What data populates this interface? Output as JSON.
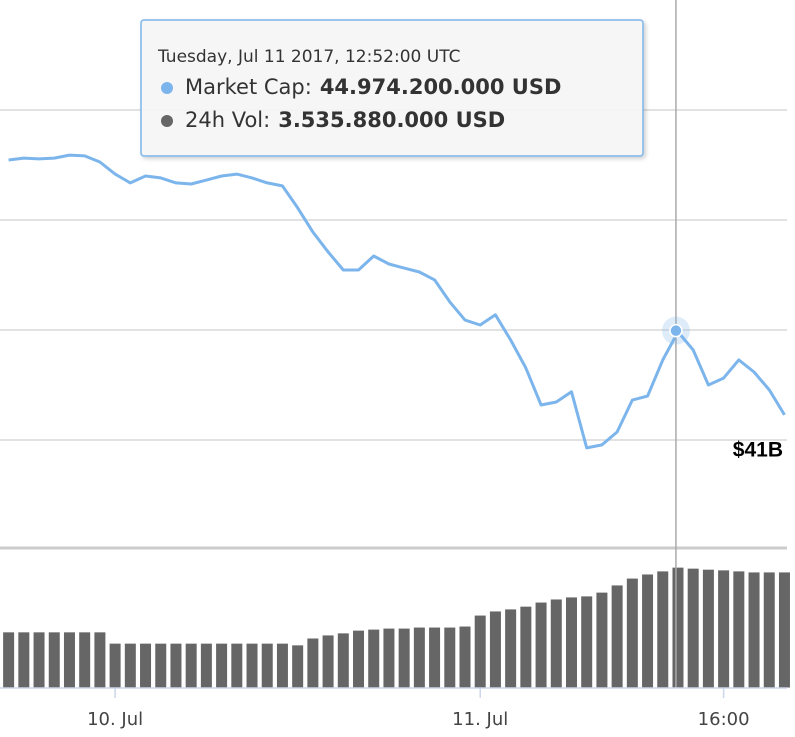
{
  "chart_data": {
    "type": "line",
    "x": [
      "2017-07-09T17:00:00Z",
      "2017-07-09T18:00:00Z",
      "2017-07-09T19:00:00Z",
      "2017-07-09T20:00:00Z",
      "2017-07-09T21:00:00Z",
      "2017-07-09T22:00:00Z",
      "2017-07-09T23:00:00Z",
      "2017-07-10T00:00:00Z",
      "2017-07-10T01:00:00Z",
      "2017-07-10T02:00:00Z",
      "2017-07-10T03:00:00Z",
      "2017-07-10T04:00:00Z",
      "2017-07-10T05:00:00Z",
      "2017-07-10T06:00:00Z",
      "2017-07-10T07:00:00Z",
      "2017-07-10T08:00:00Z",
      "2017-07-10T09:00:00Z",
      "2017-07-10T10:00:00Z",
      "2017-07-10T11:00:00Z",
      "2017-07-10T12:00:00Z",
      "2017-07-10T13:00:00Z",
      "2017-07-10T14:00:00Z",
      "2017-07-10T15:00:00Z",
      "2017-07-10T16:00:00Z",
      "2017-07-10T17:00:00Z",
      "2017-07-10T18:00:00Z",
      "2017-07-10T19:00:00Z",
      "2017-07-10T20:00:00Z",
      "2017-07-10T21:00:00Z",
      "2017-07-10T22:00:00Z",
      "2017-07-10T23:00:00Z",
      "2017-07-11T00:00:00Z",
      "2017-07-11T01:00:00Z",
      "2017-07-11T02:00:00Z",
      "2017-07-11T03:00:00Z",
      "2017-07-11T04:00:00Z",
      "2017-07-11T05:00:00Z",
      "2017-07-11T06:00:00Z",
      "2017-07-11T07:00:00Z",
      "2017-07-11T08:00:00Z",
      "2017-07-11T09:00:00Z",
      "2017-07-11T10:00:00Z",
      "2017-07-11T11:00:00Z",
      "2017-07-11T12:00:00Z",
      "2017-07-11T13:00:00Z",
      "2017-07-11T14:00:00Z",
      "2017-07-11T15:00:00Z",
      "2017-07-11T16:00:00Z",
      "2017-07-11T17:00:00Z",
      "2017-07-11T18:00:00Z",
      "2017-07-11T19:00:00Z",
      "2017-07-11T20:00:00Z"
    ],
    "series": [
      {
        "type": "line",
        "color": "#7cb5ec",
        "axis": "y",
        "values": [
          51.18,
          51.25,
          51.22,
          51.25,
          51.36,
          51.33,
          51.11,
          50.67,
          50.35,
          50.6,
          50.53,
          50.35,
          50.31,
          50.45,
          50.6,
          50.67,
          50.53,
          50.35,
          50.24,
          49.44,
          48.56,
          47.84,
          47.18,
          47.18,
          47.69,
          47.4,
          47.25,
          47.11,
          46.82,
          46.02,
          45.36,
          45.18,
          45.55,
          44.64,
          43.62,
          42.27,
          42.38,
          42.75,
          40.71,
          40.82,
          41.29,
          42.45,
          42.6,
          43.91,
          44.93,
          44.27,
          43,
          43.25,
          43.91,
          43.47,
          42.82,
          41.91
        ]
      },
      {
        "type": "bar",
        "color": "#666666",
        "axis": "y2",
        "values": [
          1.64,
          1.64,
          1.64,
          1.64,
          1.64,
          1.64,
          1.64,
          1.31,
          1.31,
          1.31,
          1.31,
          1.31,
          1.31,
          1.31,
          1.31,
          1.31,
          1.31,
          1.31,
          1.31,
          1.26,
          1.46,
          1.55,
          1.61,
          1.69,
          1.72,
          1.75,
          1.75,
          1.78,
          1.78,
          1.78,
          1.81,
          2.13,
          2.25,
          2.31,
          2.39,
          2.51,
          2.6,
          2.66,
          2.69,
          2.8,
          3.01,
          3.21,
          3.33,
          3.42,
          3.53,
          3.5,
          3.47,
          3.45,
          3.42,
          3.39,
          3.39,
          3.39
        ]
      }
    ],
    "xlim": [
      "2017-07-09T16:26:00Z",
      "2017-07-11T20:10:00Z"
    ],
    "xticks": [
      {
        "value": "2017-07-10T00:00:00Z",
        "label": "10. Jul"
      },
      {
        "value": "2017-07-11T00:00:00Z",
        "label": "11. Jul"
      },
      {
        "value": "2017-07-11T16:00:00Z",
        "label": "16:00"
      }
    ],
    "ylim": [
      37.18,
      57
    ],
    "yticks": [
      {
        "value": 41,
        "label": "$41B"
      }
    ],
    "ygrid": [
      45,
      49,
      53
    ],
    "y2lim": [
      0,
      4.03
    ],
    "grid": true,
    "tooltip": {
      "date_label": "Tuesday, Jul 11 2017, 12:52:00 UTC",
      "x": "2017-07-11T12:52:00Z",
      "items": [
        {
          "label": "Market Cap:",
          "value": 44.9742,
          "value_label": "44.974.200.000 USD"
        },
        {
          "label": "24h Vol:",
          "value": 3.53588,
          "value_label": "3.535.880.000 USD"
        }
      ]
    }
  }
}
